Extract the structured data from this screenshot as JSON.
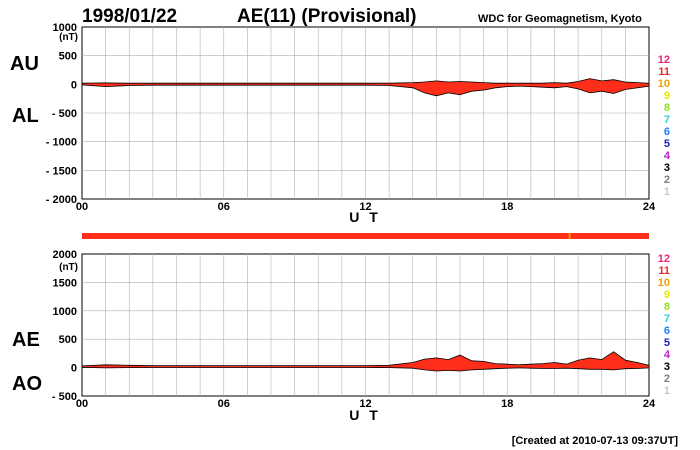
{
  "header": {
    "date": "1998/01/22",
    "title": "AE(11) (Provisional)",
    "source": "WDC for Geomagnetism, Kyoto"
  },
  "footer": {
    "created": "[Created at 2010-07-13 09:37UT]"
  },
  "station_legend": {
    "items": [
      {
        "label": "12",
        "color": "#e8287a"
      },
      {
        "label": "11",
        "color": "#e8282d"
      },
      {
        "label": "10",
        "color": "#f0a000"
      },
      {
        "label": "9",
        "color": "#e8e800"
      },
      {
        "label": "8",
        "color": "#90e020"
      },
      {
        "label": "7",
        "color": "#30d0d8"
      },
      {
        "label": "6",
        "color": "#1880ff"
      },
      {
        "label": "5",
        "color": "#2020c0"
      },
      {
        "label": "4",
        "color": "#c020d0"
      },
      {
        "label": "3",
        "color": "#000000"
      },
      {
        "label": "2",
        "color": "#808080"
      },
      {
        "label": "1",
        "color": "#c8c8c8"
      }
    ]
  },
  "colors": {
    "fill": "#ff2e1a",
    "line": "#000000",
    "grid": "#b0b0b0",
    "band_mark": "#e8a000"
  },
  "chart_data": [
    {
      "type": "area",
      "panel": "AU/AL",
      "unit": "(nT)",
      "series_labels": [
        "AU",
        "AL"
      ],
      "xlabel": "U T",
      "x_ticks": [
        "00",
        "06",
        "12",
        "18",
        "24"
      ],
      "xlim": [
        0,
        24
      ],
      "ylim": [
        -2000,
        1000
      ],
      "y_ticks": [
        "1000",
        "500",
        "0",
        "- 500",
        "- 1000",
        "- 1500",
        "- 2000"
      ],
      "grid": true,
      "hours": [
        0,
        1,
        2,
        3,
        4,
        5,
        6,
        7,
        8,
        9,
        10,
        11,
        12,
        13,
        14,
        14.5,
        15,
        15.5,
        16,
        16.5,
        17,
        17.5,
        18,
        18.5,
        19,
        19.5,
        20,
        20.5,
        21,
        21.5,
        22,
        22.5,
        23,
        23.5,
        24
      ],
      "series": [
        {
          "name": "AU",
          "values": [
            20,
            25,
            20,
            20,
            20,
            20,
            20,
            20,
            20,
            20,
            20,
            20,
            20,
            20,
            30,
            40,
            60,
            40,
            50,
            40,
            30,
            20,
            20,
            20,
            20,
            20,
            30,
            20,
            50,
            100,
            60,
            80,
            40,
            30,
            20
          ]
        },
        {
          "name": "AL",
          "values": [
            -10,
            -40,
            -20,
            -15,
            -15,
            -15,
            -15,
            -15,
            -15,
            -15,
            -15,
            -15,
            -15,
            -20,
            -60,
            -150,
            -200,
            -150,
            -180,
            -120,
            -100,
            -60,
            -40,
            -30,
            -40,
            -50,
            -60,
            -40,
            -80,
            -150,
            -120,
            -160,
            -90,
            -60,
            -30
          ]
        }
      ]
    },
    {
      "type": "area",
      "panel": "AE/AO",
      "unit": "(nT)",
      "series_labels": [
        "AE",
        "AO"
      ],
      "xlabel": "U T",
      "x_ticks": [
        "00",
        "06",
        "12",
        "18",
        "24"
      ],
      "xlim": [
        0,
        24
      ],
      "ylim": [
        -500,
        2000
      ],
      "y_ticks": [
        "2000",
        "1500",
        "1000",
        "500",
        "0",
        "- 500"
      ],
      "grid": true,
      "hours": [
        0,
        1,
        2,
        3,
        4,
        5,
        6,
        7,
        8,
        9,
        10,
        11,
        12,
        13,
        14,
        14.5,
        15,
        15.5,
        16,
        16.5,
        17,
        17.5,
        18,
        18.5,
        19,
        19.5,
        20,
        20.5,
        21,
        21.5,
        22,
        22.5,
        23,
        23.5,
        24
      ],
      "series": [
        {
          "name": "AE",
          "values": [
            30,
            50,
            40,
            35,
            35,
            35,
            35,
            35,
            35,
            35,
            35,
            35,
            35,
            40,
            90,
            150,
            170,
            140,
            220,
            120,
            110,
            70,
            60,
            50,
            60,
            70,
            90,
            60,
            130,
            170,
            140,
            280,
            130,
            90,
            40
          ]
        },
        {
          "name": "AO",
          "values": [
            5,
            -5,
            0,
            2,
            2,
            2,
            2,
            2,
            2,
            2,
            2,
            2,
            2,
            0,
            -10,
            -40,
            -60,
            -50,
            -60,
            -40,
            -30,
            -20,
            -10,
            -5,
            -10,
            -15,
            -15,
            -10,
            -20,
            -30,
            -30,
            -40,
            -20,
            -15,
            -5
          ]
        }
      ]
    }
  ],
  "band": {
    "mark_hour": 20.6
  }
}
